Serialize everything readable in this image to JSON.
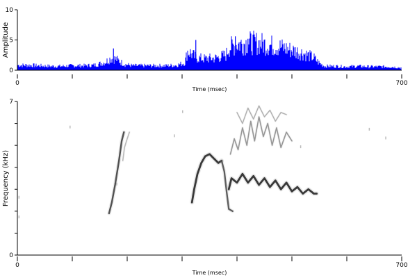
{
  "chart_data": [
    {
      "type": "area",
      "panel": "waveform",
      "ylabel": "Amplitude",
      "xlabel": "Time (msec)",
      "xlim": [
        0,
        700
      ],
      "ylim": [
        0,
        10
      ],
      "x_tick_labels": [
        "0",
        "700"
      ],
      "x_ticks": [
        0,
        100,
        200,
        300,
        400,
        500,
        600,
        700
      ],
      "y_tick_labels": [
        "0",
        "5",
        "10"
      ],
      "y_ticks": [
        0,
        5,
        10
      ],
      "color": "#0000ff",
      "envelope": {
        "x": [
          0,
          20,
          40,
          60,
          80,
          100,
          120,
          140,
          160,
          170,
          180,
          195,
          210,
          230,
          250,
          270,
          290,
          305,
          310,
          315,
          325,
          340,
          360,
          380,
          385,
          400,
          420,
          440,
          460,
          480,
          500,
          520,
          540,
          550,
          560,
          580,
          600,
          620,
          640,
          660,
          680,
          700
        ],
        "y": [
          1.0,
          1.0,
          0.9,
          0.8,
          0.8,
          0.9,
          0.9,
          1.0,
          1.6,
          2.4,
          2.2,
          1.2,
          0.9,
          0.9,
          0.9,
          0.9,
          1.0,
          1.5,
          3.8,
          3.5,
          2.5,
          2.3,
          2.4,
          3.0,
          4.5,
          5.2,
          5.5,
          5.4,
          5.0,
          4.6,
          4.0,
          3.4,
          2.5,
          1.4,
          0.8,
          0.8,
          0.7,
          0.8,
          0.7,
          0.7,
          0.7,
          0.5
        ]
      },
      "peaks": [
        {
          "x": 175,
          "y": 3.6
        },
        {
          "x": 325,
          "y": 5.0
        },
        {
          "x": 397,
          "y": 5.6
        },
        {
          "x": 420,
          "y": 5.2
        }
      ]
    },
    {
      "type": "heatmap",
      "panel": "spectrogram",
      "ylabel": "Frequency (kHz)",
      "xlabel": "Time (msec)",
      "xlim": [
        0,
        700
      ],
      "ylim": [
        0,
        7
      ],
      "x_tick_labels": [
        "0",
        "700"
      ],
      "x_ticks": [
        0,
        100,
        200,
        300,
        400,
        500,
        600,
        700
      ],
      "y_tick_labels": [
        "0",
        "7"
      ],
      "y_ticks": [
        0,
        1,
        2,
        3,
        4,
        5,
        6,
        7
      ],
      "ink_color": "#000000",
      "traces": [
        {
          "x": [
            167,
            172,
            178,
            185,
            190,
            194
          ],
          "y": [
            1.9,
            2.4,
            3.2,
            4.3,
            5.2,
            5.6
          ],
          "intensity": 0.75,
          "width": 2.4,
          "jitter": 0
        },
        {
          "x": [
            192,
            195,
            200,
            204
          ],
          "y": [
            4.3,
            4.9,
            5.3,
            5.6
          ],
          "intensity": 0.3,
          "width": 1.6,
          "jitter": 0
        },
        {
          "x": [
            318,
            322,
            328,
            335,
            342,
            350,
            358,
            366,
            372
          ],
          "y": [
            2.4,
            3.0,
            3.7,
            4.2,
            4.5,
            4.6,
            4.4,
            4.2,
            4.3
          ],
          "intensity": 0.85,
          "width": 2.8,
          "jitter": 0
        },
        {
          "x": [
            372,
            377,
            381,
            385,
            392
          ],
          "y": [
            4.3,
            3.8,
            2.9,
            2.1,
            2.0
          ],
          "intensity": 0.7,
          "width": 2.3,
          "jitter": 0
        },
        {
          "x": [
            385,
            390,
            400,
            410,
            420,
            430,
            440,
            450,
            460,
            470,
            480,
            490,
            500,
            510,
            520,
            530,
            540,
            545
          ],
          "y": [
            3.0,
            3.5,
            3.3,
            3.7,
            3.3,
            3.6,
            3.2,
            3.5,
            3.1,
            3.4,
            3.0,
            3.3,
            2.9,
            3.1,
            2.8,
            3.0,
            2.8,
            2.8
          ],
          "intensity": 0.85,
          "width": 2.8,
          "jitter": 0
        },
        {
          "x": [
            388,
            395,
            402,
            410,
            418,
            425,
            432,
            440,
            448,
            456,
            464,
            472,
            480,
            490,
            500
          ],
          "y": [
            4.6,
            5.3,
            4.8,
            5.8,
            5.0,
            6.1,
            5.2,
            6.3,
            5.4,
            6.0,
            5.0,
            5.8,
            4.9,
            5.6,
            5.2
          ],
          "intensity": 0.45,
          "width": 1.6,
          "jitter": 0
        },
        {
          "x": [
            400,
            410,
            420,
            430,
            440,
            450,
            460,
            470,
            480,
            490
          ],
          "y": [
            6.5,
            6.0,
            6.7,
            6.2,
            6.8,
            6.3,
            6.6,
            6.1,
            6.5,
            6.4
          ],
          "intensity": 0.35,
          "width": 1.4,
          "jitter": 0
        }
      ],
      "specks": [
        {
          "x": 95,
          "y": 5.9
        },
        {
          "x": 300,
          "y": 6.6
        },
        {
          "x": 285,
          "y": 5.5
        },
        {
          "x": 2,
          "y": 2.7
        },
        {
          "x": 2,
          "y": 1.8
        },
        {
          "x": 640,
          "y": 5.8
        },
        {
          "x": 670,
          "y": 5.4
        },
        {
          "x": 180,
          "y": 3.3
        },
        {
          "x": 515,
          "y": 5.0
        }
      ]
    }
  ]
}
